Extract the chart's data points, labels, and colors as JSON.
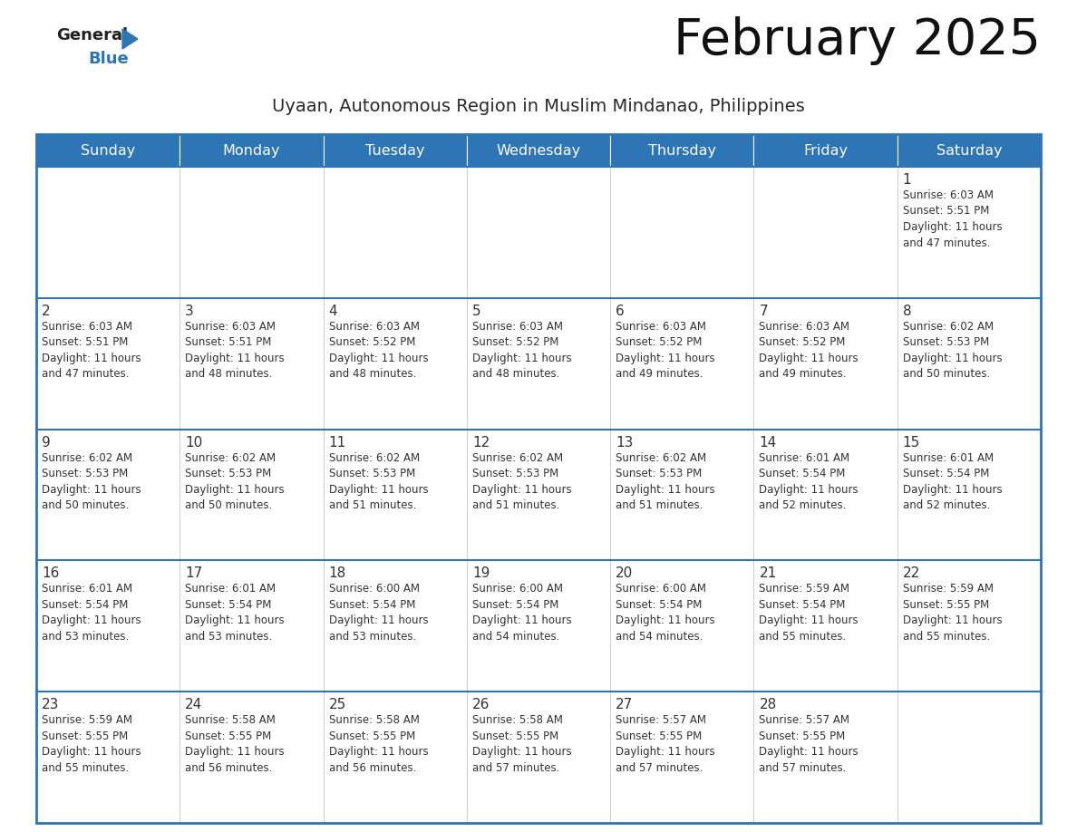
{
  "title": "February 2025",
  "subtitle": "Uyaan, Autonomous Region in Muslim Mindanao, Philippines",
  "header_bg_color": "#2e75b6",
  "header_text_color": "#ffffff",
  "cell_bg": "#ffffff",
  "cell_bg_alt": "#f0f4f8",
  "cell_text_color": "#333333",
  "day_number_color": "#333333",
  "border_color": "#2e75b6",
  "grid_color": "#cccccc",
  "days_of_week": [
    "Sunday",
    "Monday",
    "Tuesday",
    "Wednesday",
    "Thursday",
    "Friday",
    "Saturday"
  ],
  "logo_text1": "General",
  "logo_text2": "Blue",
  "logo_color1": "#222222",
  "logo_color2": "#2e75b6",
  "calendar_data": [
    [
      null,
      null,
      null,
      null,
      null,
      null,
      {
        "day": 1,
        "sunrise": "6:03 AM",
        "sunset": "5:51 PM",
        "daylight": "11 hours and 47 minutes."
      }
    ],
    [
      {
        "day": 2,
        "sunrise": "6:03 AM",
        "sunset": "5:51 PM",
        "daylight": "11 hours and 47 minutes."
      },
      {
        "day": 3,
        "sunrise": "6:03 AM",
        "sunset": "5:51 PM",
        "daylight": "11 hours and 48 minutes."
      },
      {
        "day": 4,
        "sunrise": "6:03 AM",
        "sunset": "5:52 PM",
        "daylight": "11 hours and 48 minutes."
      },
      {
        "day": 5,
        "sunrise": "6:03 AM",
        "sunset": "5:52 PM",
        "daylight": "11 hours and 48 minutes."
      },
      {
        "day": 6,
        "sunrise": "6:03 AM",
        "sunset": "5:52 PM",
        "daylight": "11 hours and 49 minutes."
      },
      {
        "day": 7,
        "sunrise": "6:03 AM",
        "sunset": "5:52 PM",
        "daylight": "11 hours and 49 minutes."
      },
      {
        "day": 8,
        "sunrise": "6:02 AM",
        "sunset": "5:53 PM",
        "daylight": "11 hours and 50 minutes."
      }
    ],
    [
      {
        "day": 9,
        "sunrise": "6:02 AM",
        "sunset": "5:53 PM",
        "daylight": "11 hours and 50 minutes."
      },
      {
        "day": 10,
        "sunrise": "6:02 AM",
        "sunset": "5:53 PM",
        "daylight": "11 hours and 50 minutes."
      },
      {
        "day": 11,
        "sunrise": "6:02 AM",
        "sunset": "5:53 PM",
        "daylight": "11 hours and 51 minutes."
      },
      {
        "day": 12,
        "sunrise": "6:02 AM",
        "sunset": "5:53 PM",
        "daylight": "11 hours and 51 minutes."
      },
      {
        "day": 13,
        "sunrise": "6:02 AM",
        "sunset": "5:53 PM",
        "daylight": "11 hours and 51 minutes."
      },
      {
        "day": 14,
        "sunrise": "6:01 AM",
        "sunset": "5:54 PM",
        "daylight": "11 hours and 52 minutes."
      },
      {
        "day": 15,
        "sunrise": "6:01 AM",
        "sunset": "5:54 PM",
        "daylight": "11 hours and 52 minutes."
      }
    ],
    [
      {
        "day": 16,
        "sunrise": "6:01 AM",
        "sunset": "5:54 PM",
        "daylight": "11 hours and 53 minutes."
      },
      {
        "day": 17,
        "sunrise": "6:01 AM",
        "sunset": "5:54 PM",
        "daylight": "11 hours and 53 minutes."
      },
      {
        "day": 18,
        "sunrise": "6:00 AM",
        "sunset": "5:54 PM",
        "daylight": "11 hours and 53 minutes."
      },
      {
        "day": 19,
        "sunrise": "6:00 AM",
        "sunset": "5:54 PM",
        "daylight": "11 hours and 54 minutes."
      },
      {
        "day": 20,
        "sunrise": "6:00 AM",
        "sunset": "5:54 PM",
        "daylight": "11 hours and 54 minutes."
      },
      {
        "day": 21,
        "sunrise": "5:59 AM",
        "sunset": "5:54 PM",
        "daylight": "11 hours and 55 minutes."
      },
      {
        "day": 22,
        "sunrise": "5:59 AM",
        "sunset": "5:55 PM",
        "daylight": "11 hours and 55 minutes."
      }
    ],
    [
      {
        "day": 23,
        "sunrise": "5:59 AM",
        "sunset": "5:55 PM",
        "daylight": "11 hours and 55 minutes."
      },
      {
        "day": 24,
        "sunrise": "5:58 AM",
        "sunset": "5:55 PM",
        "daylight": "11 hours and 56 minutes."
      },
      {
        "day": 25,
        "sunrise": "5:58 AM",
        "sunset": "5:55 PM",
        "daylight": "11 hours and 56 minutes."
      },
      {
        "day": 26,
        "sunrise": "5:58 AM",
        "sunset": "5:55 PM",
        "daylight": "11 hours and 57 minutes."
      },
      {
        "day": 27,
        "sunrise": "5:57 AM",
        "sunset": "5:55 PM",
        "daylight": "11 hours and 57 minutes."
      },
      {
        "day": 28,
        "sunrise": "5:57 AM",
        "sunset": "5:55 PM",
        "daylight": "11 hours and 57 minutes."
      },
      null
    ]
  ]
}
